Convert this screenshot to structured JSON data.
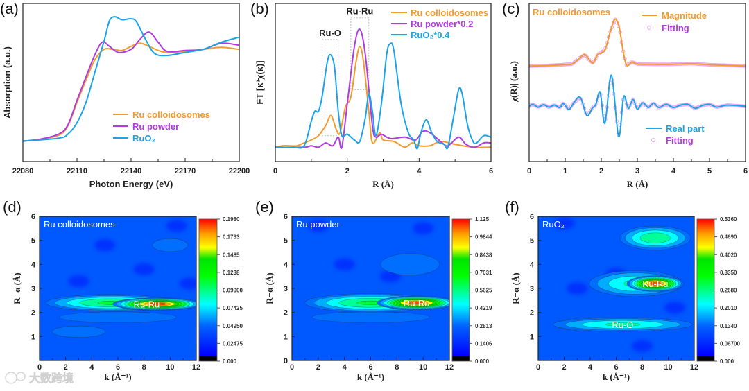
{
  "panel_labels": [
    "(a)",
    "(b)",
    "(c)",
    "(d)",
    "(e)",
    "(f)"
  ],
  "watermark": "大数跨境",
  "colors": {
    "orange": "#f39a2e",
    "purple": "#b03ce0",
    "blue": "#1aa3e8",
    "fit": "#e9a8f0"
  },
  "chart_data": [
    {
      "id": "a",
      "type": "line",
      "xlabel": "Photon Energy (eV)",
      "ylabel": "Absorption (a.u.)",
      "xlim": [
        22080,
        22200
      ],
      "ylim": [
        -0.2,
        1.35
      ],
      "xticks": [
        22080,
        22110,
        22140,
        22170,
        22200
      ],
      "xtick_labels": [
        "22080",
        "22110",
        "22140",
        "22170",
        "22200"
      ],
      "legend": "bottom-right",
      "series": [
        {
          "name": "Ru colloidosomes",
          "color": "#f39a2e",
          "x": [
            22080,
            22090,
            22100,
            22105,
            22110,
            22115,
            22120,
            22125,
            22130,
            22135,
            22140,
            22145,
            22150,
            22155,
            22160,
            22170,
            22180,
            22190,
            22200
          ],
          "y": [
            0,
            0.02,
            0.06,
            0.15,
            0.38,
            0.6,
            0.8,
            0.9,
            0.9,
            0.89,
            0.93,
            0.96,
            0.93,
            0.89,
            0.87,
            0.88,
            0.9,
            0.92,
            0.9
          ]
        },
        {
          "name": "Ru powder",
          "color": "#b03ce0",
          "x": [
            22080,
            22090,
            22100,
            22105,
            22110,
            22115,
            22120,
            22124,
            22128,
            22133,
            22140,
            22145,
            22150,
            22155,
            22160,
            22170,
            22180,
            22190,
            22200
          ],
          "y": [
            0,
            0.02,
            0.07,
            0.16,
            0.4,
            0.63,
            0.85,
            0.97,
            0.93,
            0.87,
            0.9,
            1.0,
            1.07,
            0.97,
            0.88,
            0.89,
            0.9,
            0.96,
            0.94
          ]
        },
        {
          "name": "RuO₂",
          "color": "#1aa3e8",
          "x": [
            22080,
            22100,
            22105,
            22110,
            22115,
            22120,
            22125,
            22128,
            22131,
            22135,
            22140,
            22143,
            22148,
            22153,
            22160,
            22170,
            22180,
            22190,
            22200
          ],
          "y": [
            0,
            0.03,
            0.07,
            0.18,
            0.38,
            0.68,
            0.98,
            1.18,
            1.22,
            1.19,
            1.2,
            1.17,
            1.0,
            0.86,
            0.84,
            0.87,
            0.9,
            0.97,
            1.02
          ]
        }
      ]
    },
    {
      "id": "b",
      "type": "line",
      "xlabel": "R (Å)",
      "ylabel": "FT [κ³χ(κ)]",
      "xlim": [
        0,
        6
      ],
      "ylim": [
        -0.1,
        1.0
      ],
      "xticks": [
        0,
        2,
        4,
        6
      ],
      "xtick_labels": [
        "0",
        "2",
        "4",
        "6"
      ],
      "legend": "top-right",
      "annotations": [
        {
          "text": "Ru-O",
          "box_x": [
            1.3,
            1.75
          ],
          "box_y": [
            0.08,
            0.75
          ]
        },
        {
          "text": "Ru-Ru",
          "box_x": [
            2.1,
            2.6
          ],
          "box_y": [
            0.4,
            0.9
          ]
        }
      ],
      "series": [
        {
          "name": "Ru colloidosomes",
          "color": "#f39a2e",
          "x": [
            0,
            0.2,
            0.4,
            0.6,
            0.8,
            1.0,
            1.2,
            1.4,
            1.55,
            1.7,
            1.8,
            1.95,
            2.1,
            2.25,
            2.35,
            2.45,
            2.6,
            2.7,
            2.9,
            3.0,
            3.3,
            3.6,
            3.8,
            4.0,
            4.3,
            4.6,
            5.0,
            5.5,
            6.0
          ],
          "y": [
            0,
            0.01,
            0.01,
            0.01,
            0.03,
            0.05,
            0.08,
            0.15,
            0.22,
            0.12,
            0.1,
            0.28,
            0.35,
            0.6,
            0.7,
            0.6,
            0.25,
            0.03,
            0.1,
            0.05,
            0.04,
            0.0,
            0.03,
            0.01,
            0.01,
            0.04,
            0.02,
            0.0,
            0.0
          ]
        },
        {
          "name": "Ru powder*0.2",
          "color": "#b03ce0",
          "x": [
            0,
            0.8,
            1.0,
            1.2,
            1.4,
            1.6,
            1.75,
            1.85,
            2.0,
            2.2,
            2.35,
            2.5,
            2.7,
            2.8,
            2.95,
            3.2,
            3.6,
            3.9,
            4.1,
            4.3,
            4.6,
            4.8,
            5.1,
            5.3,
            5.55,
            5.8,
            6.0
          ],
          "y": [
            0,
            0,
            0.01,
            0,
            0.03,
            0.01,
            0.07,
            0,
            0.3,
            0.7,
            0.82,
            0.65,
            0.15,
            0.07,
            0.09,
            0.06,
            0.07,
            0.05,
            0.11,
            0.1,
            0.04,
            0.01,
            0.07,
            0.02,
            0,
            0.03,
            0.03
          ]
        },
        {
          "name": "RuO₂*0.4",
          "color": "#1aa3e8",
          "x": [
            0,
            0.5,
            0.8,
            1.0,
            1.1,
            1.2,
            1.3,
            1.45,
            1.55,
            1.65,
            1.75,
            1.85,
            2.0,
            2.2,
            2.35,
            2.5,
            2.6,
            2.7,
            2.8,
            2.95,
            3.1,
            3.2,
            3.3,
            3.5,
            3.7,
            3.85,
            3.95,
            4.05,
            4.2,
            4.35,
            4.5,
            4.7,
            4.8,
            4.95,
            5.1,
            5.2,
            5.35,
            5.5,
            5.6,
            5.8,
            6.0
          ],
          "y": [
            0,
            0,
            0.01,
            0.18,
            0.25,
            0.25,
            0.35,
            0.6,
            0.64,
            0.55,
            0.25,
            0.08,
            0.09,
            0.05,
            0.04,
            0.2,
            0.37,
            0.25,
            0.08,
            0.3,
            0.65,
            0.72,
            0.67,
            0.3,
            0.1,
            0.05,
            -0.01,
            0.1,
            0.19,
            0.1,
            0.04,
            0.02,
            0,
            0.2,
            0.4,
            0.37,
            0.15,
            0.04,
            0.03,
            0.08,
            0.07
          ]
        }
      ]
    },
    {
      "id": "c",
      "type": "line",
      "xlabel": "R (Å)",
      "ylabel": "|χ(R)| (a.u.)",
      "xlim": [
        0,
        6
      ],
      "ylim": [
        -1.37,
        2.55
      ],
      "xticks": [
        0,
        1,
        2,
        3,
        4,
        5,
        6
      ],
      "xtick_labels": [
        "0",
        "1",
        "2",
        "3",
        "4",
        "5",
        "6"
      ],
      "sample_label": "Ru colloidosomes",
      "legend": "top-right / bottom-right",
      "series": [
        {
          "name": "Magnitude",
          "color": "#f39a2e",
          "style": "line",
          "x": [
            0,
            0.5,
            0.9,
            1.2,
            1.4,
            1.55,
            1.7,
            1.78,
            1.9,
            2.1,
            2.25,
            2.38,
            2.5,
            2.6,
            2.7,
            2.85,
            3.0,
            3.5,
            3.9,
            4.5,
            5.0,
            6.0
          ],
          "y": [
            1.0,
            1.01,
            1.03,
            1.05,
            1.2,
            1.28,
            1.12,
            1.08,
            1.28,
            1.4,
            1.85,
            2.16,
            1.95,
            1.4,
            1.02,
            1.1,
            1.05,
            1.04,
            1.04,
            1.06,
            1.03,
            1.0
          ]
        },
        {
          "name": "Fitting",
          "color": "#e9a8f0",
          "style": "markers",
          "fits": "Magnitude"
        },
        {
          "name": "Real part",
          "color": "#1aa3e8",
          "style": "line",
          "x": [
            0,
            0.1,
            0.25,
            0.4,
            0.55,
            0.7,
            0.85,
            0.95,
            1.1,
            1.25,
            1.42,
            1.6,
            1.75,
            1.85,
            1.97,
            2.1,
            2.28,
            2.48,
            2.62,
            2.75,
            2.88,
            3.0,
            3.15,
            3.3,
            3.45,
            3.6,
            3.8,
            4.0,
            4.2,
            4.4,
            4.6,
            4.8,
            5.0,
            5.2,
            5.5,
            6.0
          ],
          "y": [
            0,
            0.05,
            -0.02,
            0.04,
            -0.02,
            0.03,
            -0.03,
            0.07,
            -0.08,
            0.1,
            0.22,
            -0.23,
            -0.05,
            0.05,
            0.35,
            -0.42,
            0.77,
            -0.75,
            0.24,
            -0.05,
            0.17,
            -0.07,
            0.09,
            -0.03,
            0.08,
            -0.03,
            0.05,
            -0.03,
            0.03,
            0.05,
            -0.05,
            0.02,
            0.05,
            -0.02,
            0.03,
            0
          ]
        },
        {
          "name": "Fitting",
          "color": "#e9a8f0",
          "style": "markers",
          "fits": "Real part"
        }
      ]
    },
    {
      "id": "d",
      "type": "heatmap",
      "title": "Ru colloidosomes",
      "xlabel": "k (Å⁻¹)",
      "ylabel": "R+α (Å)",
      "xlim": [
        0,
        12
      ],
      "ylim": [
        0,
        6
      ],
      "xticks": [
        0,
        2,
        4,
        6,
        8,
        10,
        12
      ],
      "yticks": [
        1,
        2,
        3,
        4,
        5,
        6
      ],
      "colorbar": [
        "0.000",
        "0.02475",
        "0.04950",
        "0.07425",
        "0.09900",
        "0.1238",
        "0.1485",
        "0.1733",
        "0.1980"
      ],
      "vmax": 0.198,
      "peaks": [
        {
          "k": 6,
          "R": 1.8,
          "wk": 6,
          "wR": 0.3,
          "v": 0.32
        },
        {
          "k": 3,
          "R": 1.2,
          "wk": 3,
          "wR": 0.35,
          "v": 0.3
        },
        {
          "k": 10,
          "R": 4.8,
          "wk": 2,
          "wR": 0.4,
          "v": 0.3
        },
        {
          "k": 5.5,
          "R": 2.4,
          "wk": 5.5,
          "wR": 0.38,
          "v": 0.58
        },
        {
          "k": 9,
          "R": 2.35,
          "wk": 3.6,
          "wR": 0.27,
          "v": 1.0
        }
      ],
      "dips": [
        {
          "k": 10.5,
          "R": 5.6
        },
        {
          "k": 5,
          "R": 4.8
        },
        {
          "k": 8,
          "R": 3.8
        },
        {
          "k": 3,
          "R": 3.3
        },
        {
          "k": 11.5,
          "R": 3.2
        }
      ],
      "labels": [
        {
          "text": "Ru-Ru",
          "k": 8.2,
          "R": 2.35
        }
      ]
    },
    {
      "id": "e",
      "type": "heatmap",
      "title": "Ru powder",
      "xlabel": "k (Å⁻¹)",
      "ylabel": "R+α (Å)",
      "xlim": [
        0,
        12
      ],
      "ylim": [
        0,
        6
      ],
      "xticks": [
        0,
        2,
        4,
        6,
        8,
        10,
        12
      ],
      "yticks": [
        0,
        1,
        2,
        3,
        4,
        5,
        6
      ],
      "colorbar": [
        "0.000",
        "0.1406",
        "0.2813",
        "0.4219",
        "0.5625",
        "0.7031",
        "0.8438",
        "0.9844",
        "1.125"
      ],
      "vmax": 1.125,
      "peaks": [
        {
          "k": 6,
          "R": 1.8,
          "wk": 6,
          "wR": 0.3,
          "v": 0.32
        },
        {
          "k": 9,
          "R": 4.0,
          "wk": 3,
          "wR": 0.6,
          "v": 0.32
        },
        {
          "k": 6,
          "R": 2.4,
          "wk": 5.5,
          "wR": 0.42,
          "v": 0.58
        },
        {
          "k": 9.5,
          "R": 2.4,
          "wk": 3.2,
          "wR": 0.3,
          "v": 1.0
        }
      ],
      "dips": [
        {
          "k": 10,
          "R": 5.5
        },
        {
          "k": 4,
          "R": 4.0
        },
        {
          "k": 7.5,
          "R": 3.5
        },
        {
          "k": 2,
          "R": 5.6
        }
      ],
      "labels": [
        {
          "text": "Ru-Ru",
          "k": 9.5,
          "R": 2.4
        }
      ]
    },
    {
      "id": "f",
      "type": "heatmap",
      "title": "RuO₂",
      "xlabel": "k (Å⁻¹)",
      "ylabel": "R+α (Å)",
      "xlim": [
        0,
        12
      ],
      "ylim": [
        0,
        6
      ],
      "xticks": [
        0,
        2,
        4,
        6,
        8,
        10,
        12
      ],
      "yticks": [
        1,
        2,
        3,
        4,
        5,
        6
      ],
      "colorbar": [
        "0.000",
        "0.06700",
        "0.1340",
        "0.2010",
        "0.2680",
        "0.3350",
        "0.4020",
        "0.4690",
        "0.5360"
      ],
      "vmax": 0.536,
      "peaks": [
        {
          "k": 4,
          "R": 1.5,
          "wk": 4,
          "wR": 0.4,
          "v": 0.3
        },
        {
          "k": 6.5,
          "R": 1.5,
          "wk": 6,
          "wR": 0.32,
          "v": 0.5
        },
        {
          "k": 7.5,
          "R": 3.2,
          "wk": 4,
          "wR": 0.6,
          "v": 0.5
        },
        {
          "k": 9,
          "R": 5.1,
          "wk": 3,
          "wR": 0.55,
          "v": 0.55
        },
        {
          "k": 9,
          "R": 3.2,
          "wk": 2.3,
          "wR": 0.35,
          "v": 1.0
        }
      ],
      "dips": [
        {
          "k": 2,
          "R": 5.7
        },
        {
          "k": 6,
          "R": 3.6
        },
        {
          "k": 10.5,
          "R": 2.2
        },
        {
          "k": 8,
          "R": 0.6
        },
        {
          "k": 3,
          "R": 3.0
        }
      ],
      "labels": [
        {
          "text": "Ru-Ru",
          "k": 9,
          "R": 3.2
        },
        {
          "text": "Ru-O",
          "k": 6.5,
          "R": 1.5
        }
      ]
    }
  ]
}
